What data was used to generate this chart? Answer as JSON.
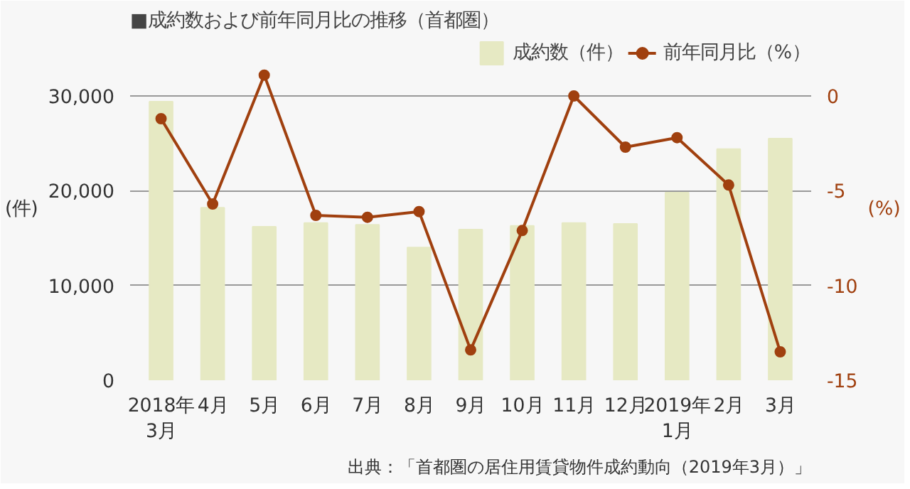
{
  "chart_data": {
    "type": "bar",
    "title": "■成約数および前年同月比の推移（首都圏）",
    "categories": [
      "2018年\n3月",
      "4月",
      "5月",
      "6月",
      "7月",
      "8月",
      "9月",
      "10月",
      "11月",
      "12月",
      "2019年\n1月",
      "2月",
      "3月"
    ],
    "series": [
      {
        "name": "成約数（件）",
        "color": "#e6e9c3",
        "values": [
          29400,
          18200,
          16200,
          16600,
          16400,
          14000,
          15900,
          16300,
          16600,
          16500,
          19800,
          24400,
          25500
        ]
      },
      {
        "name": "前年同月比（%）",
        "type": "line",
        "axis": "y2",
        "color": "#a0400f",
        "values": [
          -1.2,
          -5.7,
          1.1,
          -6.3,
          -6.4,
          -6.1,
          -13.4,
          -7.1,
          0.0,
          -2.7,
          -2.2,
          -4.7,
          -13.5
        ]
      }
    ],
    "ylabel": "(件)",
    "y2label": "(%)",
    "ylim": [
      0,
      36000
    ],
    "yticks": [
      {
        "value": 0,
        "label": "0"
      },
      {
        "value": 10000,
        "label": "10,000"
      },
      {
        "value": 20000,
        "label": "20,000"
      },
      {
        "value": 30000,
        "label": "30,000"
      }
    ],
    "y2lim": [
      -15,
      3
    ],
    "y2ticks": [
      -15,
      -10,
      -5,
      0
    ],
    "grid": "y",
    "legend": "top right",
    "marker": "circle",
    "annotations": [
      "出典：「首都圏の居住用賃貸物件成約動向（2019年3月）」"
    ]
  }
}
